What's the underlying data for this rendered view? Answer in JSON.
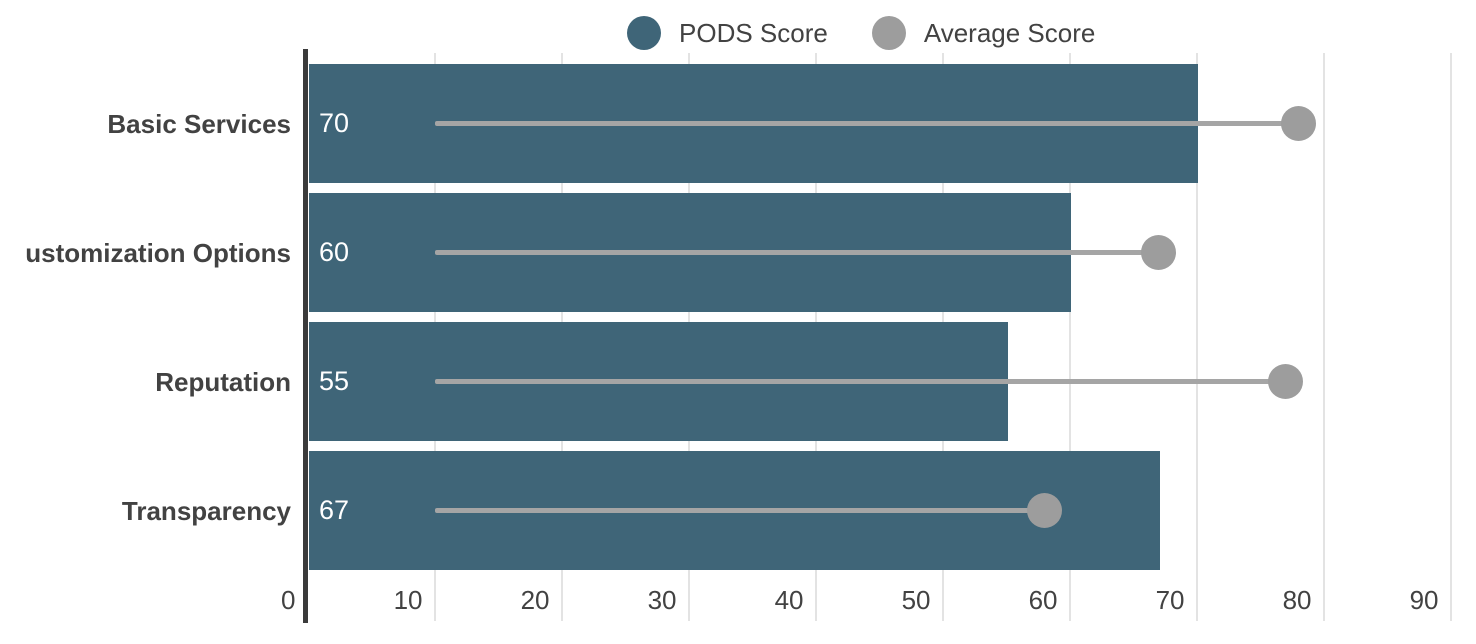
{
  "legend": {
    "items": [
      {
        "label": "PODS Score",
        "color": "#3f6578"
      },
      {
        "label": "Average Score",
        "color": "#9d9d9d"
      }
    ]
  },
  "chart_data": {
    "type": "bar",
    "orientation": "horizontal",
    "title": "",
    "categories": [
      "Basic Services",
      "ustomization Options",
      "Reputation",
      "Transparency"
    ],
    "series": [
      {
        "name": "PODS Score",
        "style": "bar",
        "color": "#3f6578",
        "values": [
          70,
          60,
          55,
          67
        ],
        "data_labels": [
          "70",
          "60",
          "55",
          "67"
        ]
      },
      {
        "name": "Average Score",
        "style": "lollipop-dot",
        "color": "#9d9d9d",
        "values": [
          78,
          67,
          77,
          58
        ]
      }
    ],
    "xlabel": "",
    "ylabel": "",
    "xlim": [
      0,
      90
    ],
    "xticks": [
      0,
      10,
      20,
      30,
      40,
      50,
      60,
      70,
      80,
      90
    ],
    "grid": true,
    "legend_position": "top-center",
    "lollipop_stem_start": 10
  },
  "colors": {
    "bar": "#3f6578",
    "dot": "#9d9d9d",
    "stem": "#a5a5a5",
    "gridline": "#e3e3e3",
    "axis_line": "#3b3b3b",
    "text": "#424242",
    "bar_label_text": "#ffffff",
    "background": "#ffffff"
  }
}
